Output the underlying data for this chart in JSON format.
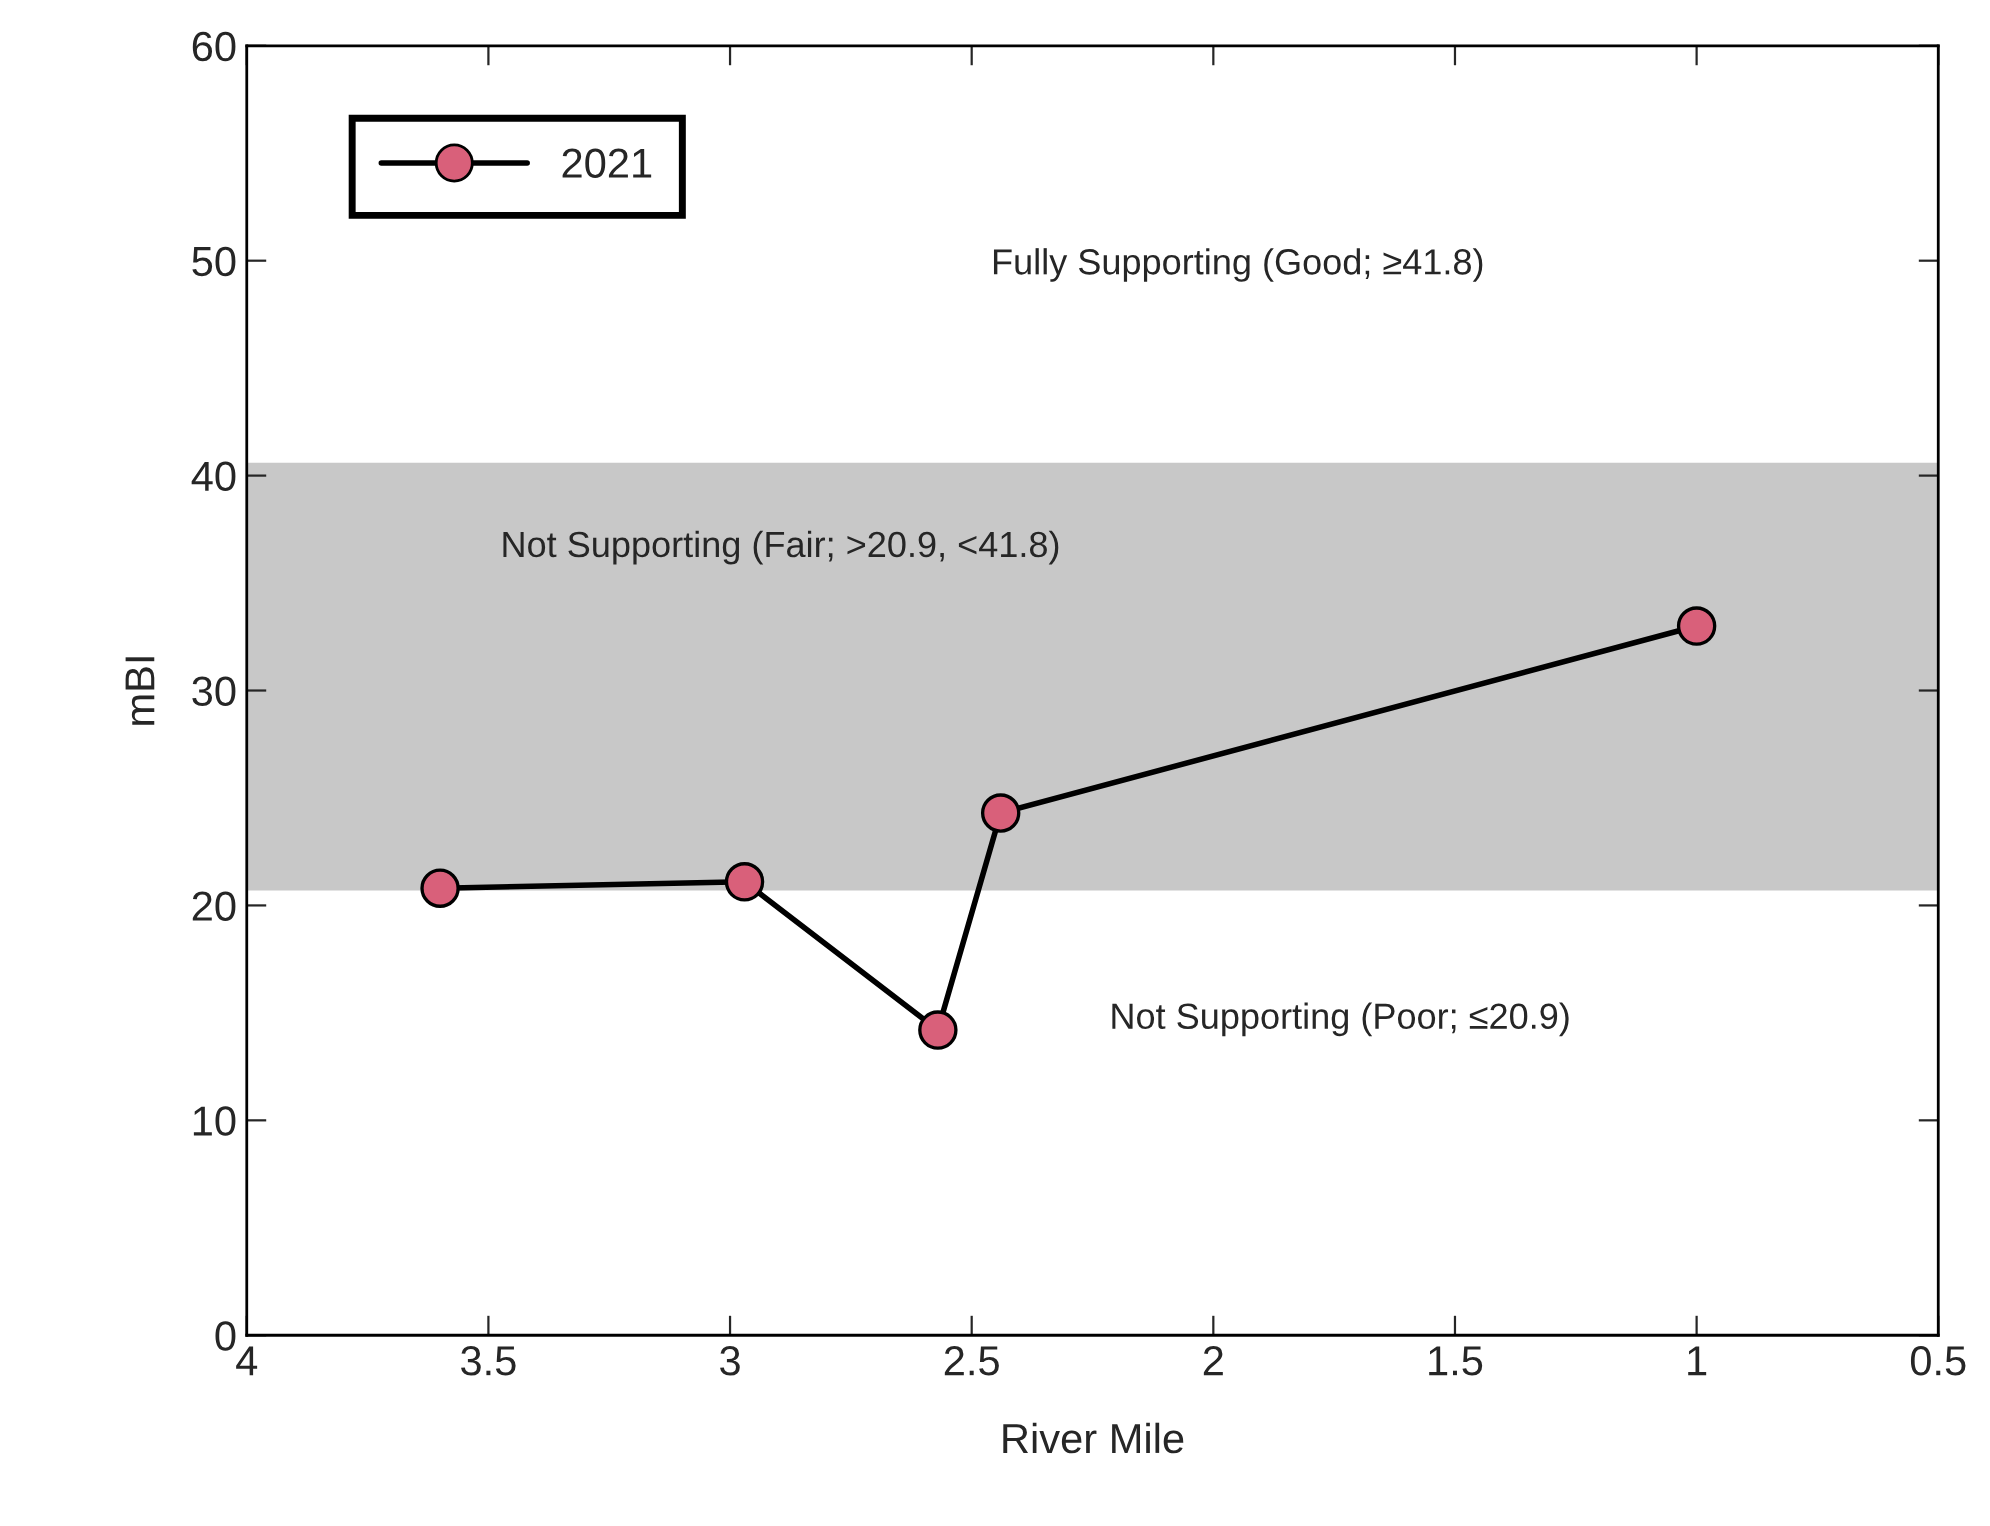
{
  "chart_data": {
    "type": "line",
    "xlabel": "River Mile",
    "ylabel": "mBI",
    "x": [
      3.6,
      2.97,
      2.57,
      2.44,
      1.0
    ],
    "series": [
      {
        "name": "2021",
        "color": "#d9607a",
        "values": [
          20.8,
          21.1,
          14.2,
          24.3,
          33.0
        ]
      }
    ],
    "xlim": [
      4,
      0.5
    ],
    "xticks": [
      4,
      3.5,
      3,
      2.5,
      2,
      1.5,
      1,
      0.5
    ],
    "ylim": [
      0,
      60
    ],
    "yticks": [
      0,
      10,
      20,
      30,
      40,
      50,
      60
    ],
    "bands": [
      {
        "axis": "y",
        "from": 20.7,
        "to": 40.6,
        "color": "#c8c8c8",
        "label": "Not Supporting (Fair; >20.9, <41.8)"
      }
    ],
    "annotations": [
      "Fully Supporting (Good; ≥41.8)",
      "Not Supporting (Poor; ≤20.9)"
    ],
    "marker": "circle",
    "line_style": "solid",
    "legend": "top left",
    "grid": false
  }
}
